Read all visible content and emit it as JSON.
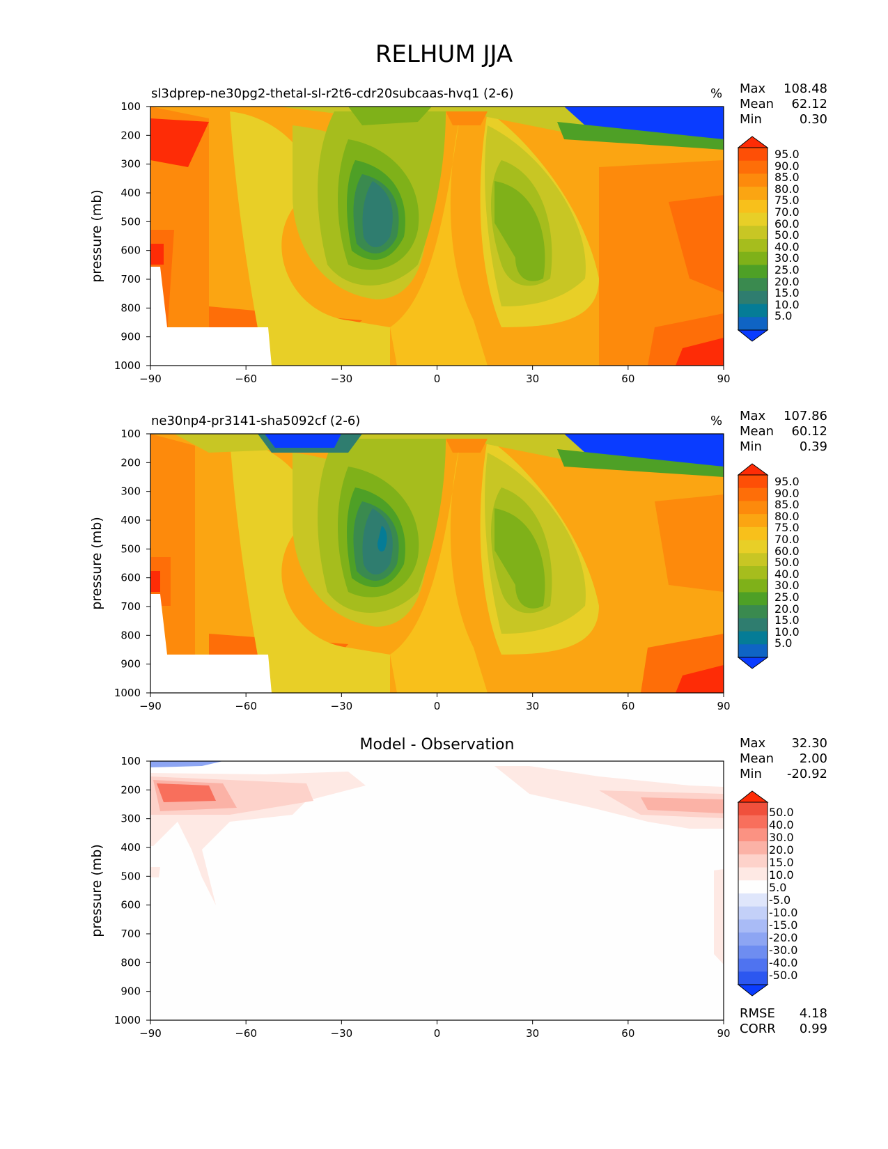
{
  "suptitle": "RELHUM JJA",
  "chart_data": [
    {
      "type": "heatmap",
      "title": "sl3dprep-ne30pg2-thetal-sl-r2t6-cdr20subcaas-hvq1 (2-6)",
      "units": "%",
      "ylabel": "pressure (mb)",
      "xlabel": "",
      "xlim": [
        -90,
        90
      ],
      "ylim": [
        1000,
        100
      ],
      "xticks": [
        "−90",
        "−60",
        "−30",
        "0",
        "30",
        "60",
        "90"
      ],
      "yticks": [
        "100",
        "200",
        "300",
        "400",
        "500",
        "600",
        "700",
        "800",
        "900",
        "1000"
      ],
      "stats": {
        "max_label": "Max",
        "max": "108.48",
        "mean_label": "Mean",
        "mean": "62.12",
        "min_label": "Min",
        "min": "0.30"
      },
      "colorbar_levels": [
        "95.0",
        "90.0",
        "85.0",
        "80.0",
        "75.0",
        "70.0",
        "60.0",
        "50.0",
        "40.0",
        "30.0",
        "25.0",
        "20.0",
        "15.0",
        "10.0",
        "5.0"
      ]
    },
    {
      "type": "heatmap",
      "title": "ne30np4-pr3141-sha5092cf (2-6)",
      "units": "%",
      "ylabel": "pressure (mb)",
      "xlabel": "",
      "xlim": [
        -90,
        90
      ],
      "ylim": [
        1000,
        100
      ],
      "xticks": [
        "−90",
        "−60",
        "−30",
        "0",
        "30",
        "60",
        "90"
      ],
      "yticks": [
        "100",
        "200",
        "300",
        "400",
        "500",
        "600",
        "700",
        "800",
        "900",
        "1000"
      ],
      "stats": {
        "max_label": "Max",
        "max": "107.86",
        "mean_label": "Mean",
        "mean": "60.12",
        "min_label": "Min",
        "min": "0.39"
      },
      "colorbar_levels": [
        "95.0",
        "90.0",
        "85.0",
        "80.0",
        "75.0",
        "70.0",
        "60.0",
        "50.0",
        "40.0",
        "30.0",
        "25.0",
        "20.0",
        "15.0",
        "10.0",
        "5.0"
      ]
    },
    {
      "type": "heatmap",
      "title": "Model - Observation",
      "units": "",
      "ylabel": "pressure (mb)",
      "xlabel": "",
      "xlim": [
        -90,
        90
      ],
      "ylim": [
        1000,
        100
      ],
      "xticks": [
        "−90",
        "−60",
        "−30",
        "0",
        "30",
        "60",
        "90"
      ],
      "yticks": [
        "100",
        "200",
        "300",
        "400",
        "500",
        "600",
        "700",
        "800",
        "900",
        "1000"
      ],
      "stats": {
        "max_label": "Max",
        "max": "32.30",
        "mean_label": "Mean",
        "mean": "2.00",
        "min_label": "Min",
        "min": "-20.92"
      },
      "colorbar_levels": [
        "50.0",
        "40.0",
        "30.0",
        "20.0",
        "15.0",
        "10.0",
        "5.0",
        "-5.0",
        "-10.0",
        "-15.0",
        "-20.0",
        "-30.0",
        "-40.0",
        "-50.0"
      ],
      "rmse_label": "RMSE",
      "rmse": "4.18",
      "corr_label": "CORR",
      "corr": "0.99"
    }
  ],
  "colors": {
    "abs_scale": [
      "#fe2c06",
      "#fe4f06",
      "#fe6e08",
      "#fd8a0c",
      "#fba512",
      "#f8c01b",
      "#e8cf27",
      "#c8c624",
      "#a6bd1d",
      "#7fb119",
      "#4ea026",
      "#3a8a4f",
      "#2f7d6f",
      "#057c96",
      "#0f64c4",
      "#0a3cff"
    ],
    "diff_pos": [
      "#fe2c06",
      "#f0503c",
      "#f86f5c",
      "#fb9282",
      "#fbb2a6",
      "#fdd2ca",
      "#fee9e4"
    ],
    "diff_neutral": "#fefefe",
    "diff_neg": [
      "#dfe6fb",
      "#c3d0f8",
      "#a9bbf6",
      "#8da5f3",
      "#6e8df1",
      "#4f73f0",
      "#2c57f0",
      "#0a3cff"
    ]
  }
}
